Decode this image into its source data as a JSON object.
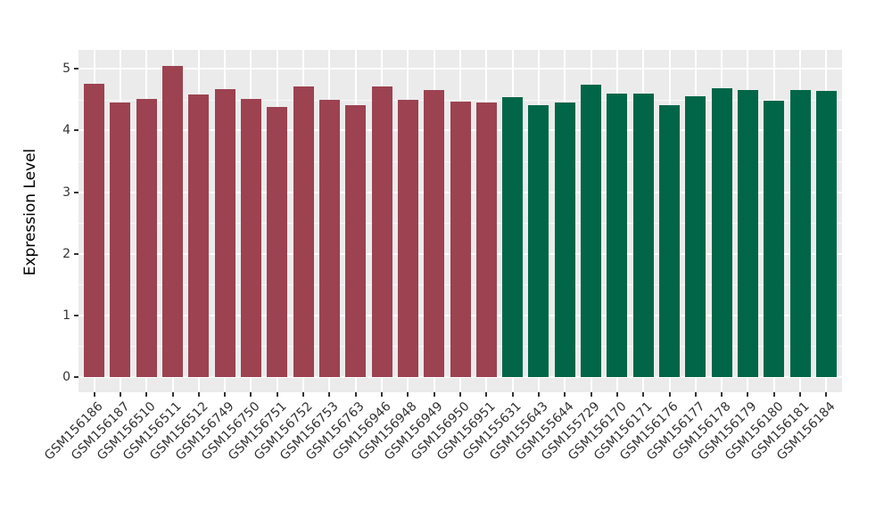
{
  "chart_data": {
    "type": "bar",
    "title": "",
    "xlabel": "",
    "ylabel": "Expression Level",
    "yticks": [
      0,
      1,
      2,
      3,
      4,
      5
    ],
    "ylim": [
      -0.25,
      5.3
    ],
    "grid": "major and minor horizontal white gridlines, vertical white gridlines at each category, gray panel background (ggplot style)",
    "legend_position": "none",
    "categories": [
      "GSM156186",
      "GSM156187",
      "GSM156510",
      "GSM156511",
      "GSM156512",
      "GSM156749",
      "GSM156750",
      "GSM156751",
      "GSM156752",
      "GSM156753",
      "GSM156763",
      "GSM156946",
      "GSM156948",
      "GSM156949",
      "GSM156950",
      "GSM156951",
      "GSM155631",
      "GSM155643",
      "GSM155644",
      "GSM155729",
      "GSM156170",
      "GSM156171",
      "GSM156176",
      "GSM156177",
      "GSM156178",
      "GSM156179",
      "GSM156180",
      "GSM156181",
      "GSM156184"
    ],
    "values": [
      4.76,
      4.46,
      4.51,
      5.05,
      4.58,
      4.67,
      4.51,
      4.38,
      4.72,
      4.5,
      4.41,
      4.72,
      4.5,
      4.66,
      4.47,
      4.45,
      4.54,
      4.41,
      4.46,
      4.74,
      4.6,
      4.6,
      4.41,
      4.55,
      4.68,
      4.65,
      4.48,
      4.66,
      4.64
    ],
    "bar_groups": [
      "group1",
      "group1",
      "group1",
      "group1",
      "group1",
      "group1",
      "group1",
      "group1",
      "group1",
      "group1",
      "group1",
      "group1",
      "group1",
      "group1",
      "group1",
      "group1",
      "group2",
      "group2",
      "group2",
      "group2",
      "group2",
      "group2",
      "group2",
      "group2",
      "group2",
      "group2",
      "group2",
      "group2",
      "group2"
    ],
    "group_colors": {
      "group1": "#9C4251",
      "group2": "#006647"
    }
  },
  "style": {
    "panel_bg": "#EBEBEB",
    "gridline_color": "#FFFFFF",
    "axis_text_color": "#333333",
    "axis_title_color": "#000000"
  }
}
